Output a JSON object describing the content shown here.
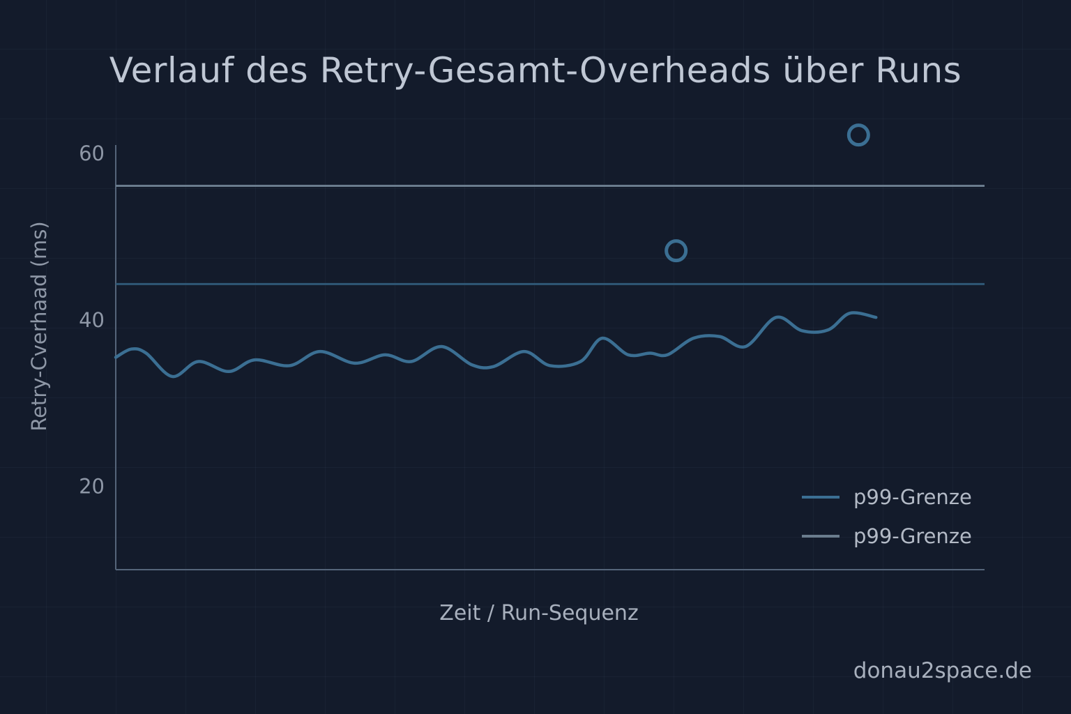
{
  "chart_data": {
    "type": "line",
    "title": "Verlauf des Retry-Gesamt-Overheads über Runs",
    "xlabel": "Zeit / Run-Sequenz",
    "ylabel": "Retry-Cverhaad (ms)",
    "ylim": [
      10,
      61
    ],
    "yticks": [
      20,
      40,
      60
    ],
    "x_tick_labels": [],
    "grid": true,
    "legend_placement": "bottom-right",
    "series": [
      {
        "name": "p99-Grenze",
        "color": "#3b6f93",
        "x": [
          0,
          1.8,
          3.5,
          6.5,
          9.5,
          13,
          16,
          20,
          23.5,
          27.5,
          31,
          34,
          37.5,
          41,
          43.5,
          47,
          50,
          53.5,
          56,
          59,
          61.5,
          63.5,
          66.5,
          69.5,
          72.5,
          76,
          79,
          82,
          84.5,
          87.5,
          90.5,
          94,
          96.5,
          98.5
        ],
        "y": [
          35.5,
          36.5,
          36,
          33.2,
          35,
          33.8,
          35.2,
          34.5,
          36.2,
          34.8,
          35.8,
          35,
          36.8,
          34.6,
          34.4,
          36.2,
          34.5,
          35,
          37.8,
          35.8,
          36,
          35.8,
          37.8,
          38,
          36.8,
          40.3,
          38.7,
          38.8,
          40.8,
          40.3,
          null,
          null,
          null,
          null
        ]
      },
      {
        "name": "p99-Grenze",
        "color": "#6a7c8d",
        "constant": 56.1
      },
      {
        "name": "",
        "color": "#2f5876",
        "constant": 44.3
      }
    ],
    "outliers": [
      {
        "x": 64.5,
        "y": 48.3
      },
      {
        "x": 85.5,
        "y": 62.2
      }
    ]
  },
  "legend": [
    {
      "label": "p99-Grenze",
      "color": "#3b6f93"
    },
    {
      "label": "p99-Grenze",
      "color": "#6a7c8d"
    }
  ],
  "watermark": "donau2space.de",
  "colors": {
    "background": "#131b2b",
    "axis": "#55657a",
    "outlier": "#3b6f93"
  }
}
